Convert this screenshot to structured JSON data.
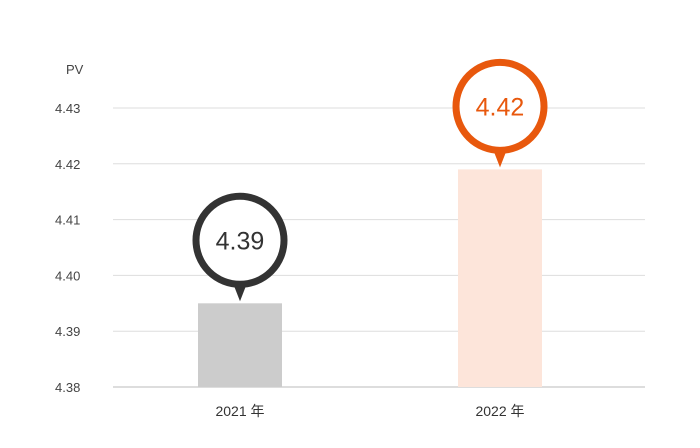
{
  "chart_data": {
    "type": "bar",
    "ylabel": "PV",
    "ylim": [
      4.38,
      4.43
    ],
    "yticks": [
      "4.43",
      "4.42",
      "4.41",
      "4.40",
      "4.39",
      "4.38"
    ],
    "grid": true,
    "categories": [
      "2021 年",
      "2022 年"
    ],
    "values": [
      4.395,
      4.419
    ],
    "data_labels": [
      "4.39",
      "4.42"
    ],
    "bar_colors": [
      "#cccccc",
      "#fde5da"
    ],
    "bubble_colors": [
      "#333333",
      "#e8580d"
    ]
  }
}
